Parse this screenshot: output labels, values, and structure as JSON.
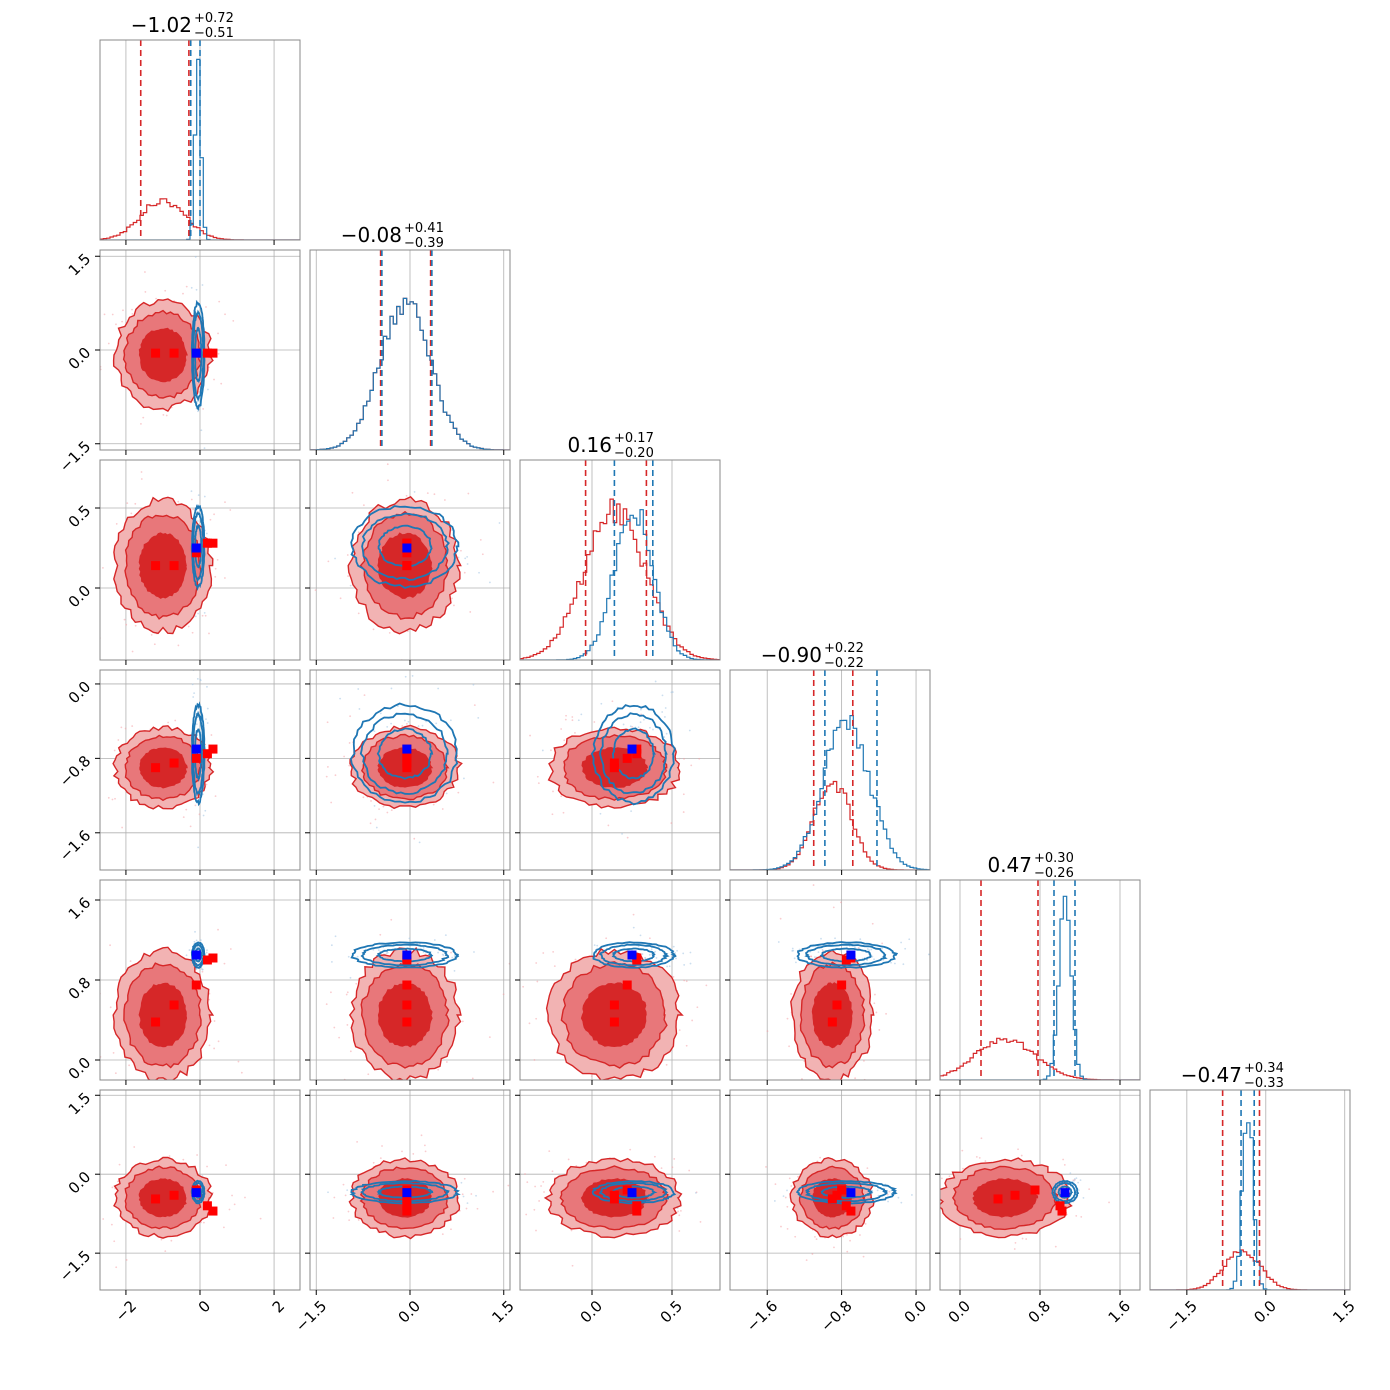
{
  "colors": {
    "red": "#d62728",
    "blue": "#1f77b4",
    "red_fill_outer": "#f2b3b3",
    "red_fill_mid": "#e8777a",
    "red_fill_inner": "#d62728",
    "marker_blue": "#0000ff",
    "marker_red": "#ff0000"
  },
  "chart_data": {
    "type": "corner",
    "n_params": 6,
    "titles": [
      {
        "median": "−1.02",
        "plus": "+0.72",
        "minus": "−0.51"
      },
      {
        "median": "−0.08",
        "plus": "+0.41",
        "minus": "−0.39"
      },
      {
        "median": "0.16",
        "plus": "+0.17",
        "minus": "−0.20"
      },
      {
        "median": "−0.90",
        "plus": "+0.22",
        "minus": "−0.22"
      },
      {
        "median": "0.47",
        "plus": "+0.30",
        "minus": "−0.26"
      },
      {
        "median": "−0.47",
        "plus": "+0.34",
        "minus": "−0.33"
      }
    ],
    "ranges": [
      [
        -2.7,
        2.7
      ],
      [
        -1.6,
        1.6
      ],
      [
        -0.45,
        0.8
      ],
      [
        -2.0,
        0.15
      ],
      [
        -0.2,
        1.8
      ],
      [
        -2.2,
        1.6
      ]
    ],
    "ticks": [
      {
        "values": [
          -2,
          0,
          2
        ],
        "labels": [
          "−2",
          "0",
          "2"
        ]
      },
      {
        "values": [
          -1.5,
          0.0,
          1.5
        ],
        "labels": [
          "−1.5",
          "0.0",
          "1.5"
        ]
      },
      {
        "values": [
          0.0,
          0.5
        ],
        "labels": [
          "0.0",
          "0.5"
        ]
      },
      {
        "values": [
          -1.6,
          -0.8,
          0.0
        ],
        "labels": [
          "−1.6",
          "−0.8",
          "0.0"
        ]
      },
      {
        "values": [
          0.0,
          0.8,
          1.6
        ],
        "labels": [
          "0.0",
          "0.8",
          "1.6"
        ]
      },
      {
        "values": [
          -1.5,
          0.0,
          1.5
        ],
        "labels": [
          "−1.5",
          "0.0",
          "1.5"
        ]
      }
    ],
    "y_ticks": [
      null,
      {
        "values": [
          -1.5,
          0.0,
          1.5
        ],
        "labels": [
          "−1.5",
          "0.0",
          "1.5"
        ]
      },
      {
        "values": [
          0.0,
          0.5
        ],
        "labels": [
          "0.0",
          "0.5"
        ]
      },
      {
        "values": [
          -1.6,
          -0.8,
          0.0
        ],
        "labels": [
          "−1.6",
          "−0.8",
          "0.0"
        ]
      },
      {
        "values": [
          0.0,
          0.8,
          1.6
        ],
        "labels": [
          "0.0",
          "0.8",
          "1.6"
        ]
      },
      {
        "values": [
          -1.5,
          0.0,
          1.5
        ],
        "labels": [
          "−1.5",
          "0.0",
          "1.5"
        ]
      }
    ],
    "series": [
      {
        "name": "red",
        "mean": [
          -1.0,
          -0.08,
          0.14,
          -0.9,
          0.45,
          -0.45
        ],
        "sd": [
          0.6,
          0.4,
          0.19,
          0.2,
          0.3,
          0.34
        ],
        "quantiles": [
          [
            -1.6,
            -0.3
          ],
          [
            -0.47,
            0.33
          ],
          [
            -0.04,
            0.34
          ],
          [
            -1.1,
            -0.68
          ],
          [
            0.21,
            0.78
          ],
          [
            -0.82,
            -0.12
          ]
        ]
      },
      {
        "name": "blue",
        "mean": [
          -0.05,
          -0.08,
          0.26,
          -0.75,
          1.05,
          -0.34
        ],
        "sd": [
          0.08,
          0.4,
          0.12,
          0.25,
          0.06,
          0.1
        ],
        "quantiles": [
          [
            -0.25,
            0.0
          ],
          [
            -0.45,
            0.35
          ],
          [
            0.14,
            0.38
          ],
          [
            -0.98,
            -0.42
          ],
          [
            0.94,
            1.15
          ],
          [
            -0.47,
            -0.22
          ]
        ]
      }
    ],
    "truth_blue": [
      -0.1,
      -0.05,
      0.25,
      -0.7,
      1.05,
      -0.35
    ],
    "truth_red": [
      [
        -1.2,
        -0.7,
        -0.1,
        0.2,
        0.35
      ],
      [
        -0.05,
        -0.05,
        -0.05,
        -0.05,
        -0.05
      ],
      [
        0.14,
        0.14,
        0.22,
        0.28,
        0.28
      ],
      [
        -0.9,
        -0.85,
        -0.8,
        -0.75,
        -0.7
      ],
      [
        0.38,
        0.55,
        0.75,
        1.0,
        1.02
      ],
      [
        -0.47,
        -0.4,
        -0.3,
        -0.6,
        -0.7
      ]
    ]
  }
}
